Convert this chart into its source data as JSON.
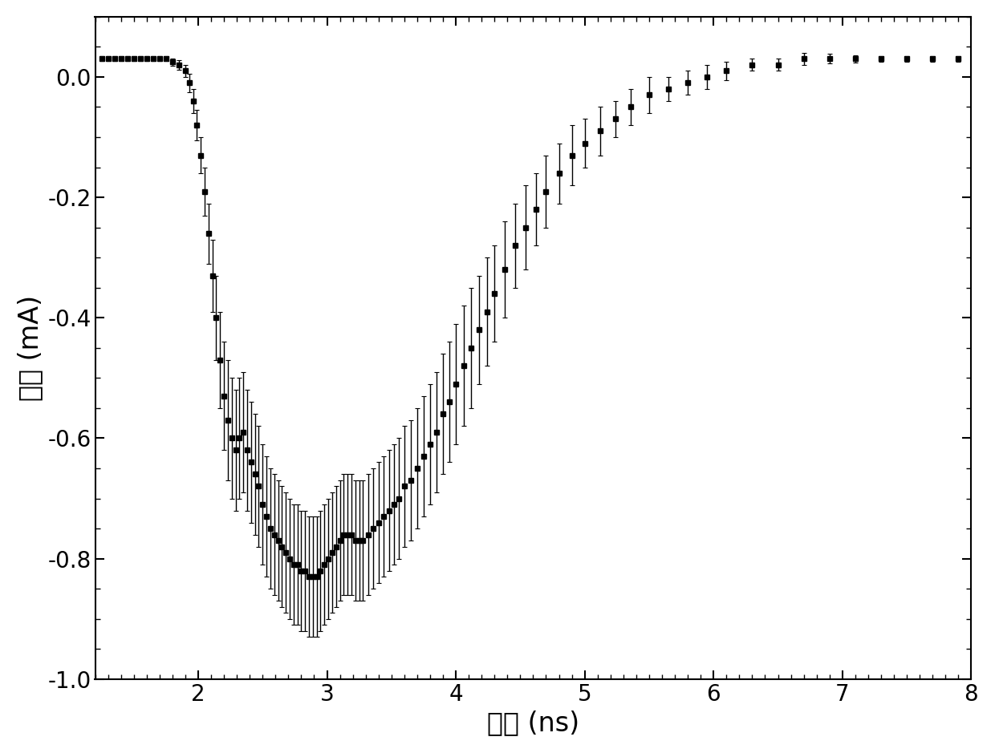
{
  "xlabel": "时间 (ns)",
  "ylabel": "电流 (mA)",
  "xlim": [
    1.2,
    8.0
  ],
  "ylim": [
    -1.0,
    0.1
  ],
  "yticks": [
    0.0,
    -0.2,
    -0.4,
    -0.6,
    -0.8,
    -1.0
  ],
  "xticks": [
    2,
    3,
    4,
    5,
    6,
    7,
    8
  ],
  "line_color": "#000000",
  "marker": "s",
  "markersize": 5,
  "linewidth": 1.5,
  "background_color": "#ffffff",
  "xlabel_fontsize": 24,
  "ylabel_fontsize": 24,
  "tick_fontsize": 20,
  "x": [
    1.25,
    1.3,
    1.35,
    1.4,
    1.45,
    1.5,
    1.55,
    1.6,
    1.65,
    1.7,
    1.75,
    1.8,
    1.85,
    1.9,
    1.93,
    1.96,
    1.99,
    2.02,
    2.05,
    2.08,
    2.11,
    2.14,
    2.17,
    2.2,
    2.23,
    2.26,
    2.29,
    2.32,
    2.35,
    2.38,
    2.41,
    2.44,
    2.47,
    2.5,
    2.53,
    2.56,
    2.59,
    2.62,
    2.65,
    2.68,
    2.71,
    2.74,
    2.77,
    2.8,
    2.83,
    2.86,
    2.89,
    2.92,
    2.95,
    2.98,
    3.01,
    3.04,
    3.07,
    3.1,
    3.13,
    3.16,
    3.19,
    3.22,
    3.25,
    3.28,
    3.32,
    3.36,
    3.4,
    3.44,
    3.48,
    3.52,
    3.56,
    3.6,
    3.65,
    3.7,
    3.75,
    3.8,
    3.85,
    3.9,
    3.95,
    4.0,
    4.06,
    4.12,
    4.18,
    4.24,
    4.3,
    4.38,
    4.46,
    4.54,
    4.62,
    4.7,
    4.8,
    4.9,
    5.0,
    5.12,
    5.24,
    5.36,
    5.5,
    5.65,
    5.8,
    5.95,
    6.1,
    6.3,
    6.5,
    6.7,
    6.9,
    7.1,
    7.3,
    7.5,
    7.7,
    7.9
  ],
  "y": [
    0.03,
    0.03,
    0.03,
    0.03,
    0.03,
    0.03,
    0.03,
    0.03,
    0.03,
    0.03,
    0.03,
    0.025,
    0.02,
    0.01,
    -0.01,
    -0.04,
    -0.08,
    -0.13,
    -0.19,
    -0.26,
    -0.33,
    -0.4,
    -0.47,
    -0.53,
    -0.57,
    -0.6,
    -0.62,
    -0.6,
    -0.59,
    -0.62,
    -0.64,
    -0.66,
    -0.68,
    -0.71,
    -0.73,
    -0.75,
    -0.76,
    -0.77,
    -0.78,
    -0.79,
    -0.8,
    -0.81,
    -0.81,
    -0.82,
    -0.82,
    -0.83,
    -0.83,
    -0.83,
    -0.82,
    -0.81,
    -0.8,
    -0.79,
    -0.78,
    -0.77,
    -0.76,
    -0.76,
    -0.76,
    -0.77,
    -0.77,
    -0.77,
    -0.76,
    -0.75,
    -0.74,
    -0.73,
    -0.72,
    -0.71,
    -0.7,
    -0.68,
    -0.67,
    -0.65,
    -0.63,
    -0.61,
    -0.59,
    -0.56,
    -0.54,
    -0.51,
    -0.48,
    -0.45,
    -0.42,
    -0.39,
    -0.36,
    -0.32,
    -0.28,
    -0.25,
    -0.22,
    -0.19,
    -0.16,
    -0.13,
    -0.11,
    -0.09,
    -0.07,
    -0.05,
    -0.03,
    -0.02,
    -0.01,
    0.0,
    0.01,
    0.02,
    0.02,
    0.03,
    0.03,
    0.03,
    0.03,
    0.03,
    0.03,
    0.03
  ],
  "yerr": [
    0.004,
    0.004,
    0.004,
    0.004,
    0.004,
    0.004,
    0.004,
    0.004,
    0.004,
    0.004,
    0.004,
    0.006,
    0.008,
    0.01,
    0.015,
    0.02,
    0.025,
    0.03,
    0.04,
    0.05,
    0.06,
    0.07,
    0.08,
    0.09,
    0.1,
    0.1,
    0.1,
    0.1,
    0.1,
    0.1,
    0.1,
    0.1,
    0.1,
    0.1,
    0.1,
    0.1,
    0.1,
    0.1,
    0.1,
    0.1,
    0.1,
    0.1,
    0.1,
    0.1,
    0.1,
    0.1,
    0.1,
    0.1,
    0.1,
    0.1,
    0.1,
    0.1,
    0.1,
    0.1,
    0.1,
    0.1,
    0.1,
    0.1,
    0.1,
    0.1,
    0.1,
    0.1,
    0.1,
    0.1,
    0.1,
    0.1,
    0.1,
    0.1,
    0.1,
    0.1,
    0.1,
    0.1,
    0.1,
    0.1,
    0.1,
    0.1,
    0.1,
    0.1,
    0.09,
    0.09,
    0.08,
    0.08,
    0.07,
    0.07,
    0.06,
    0.06,
    0.05,
    0.05,
    0.04,
    0.04,
    0.03,
    0.03,
    0.03,
    0.02,
    0.02,
    0.02,
    0.015,
    0.01,
    0.01,
    0.01,
    0.008,
    0.006,
    0.005,
    0.005,
    0.005,
    0.005
  ]
}
